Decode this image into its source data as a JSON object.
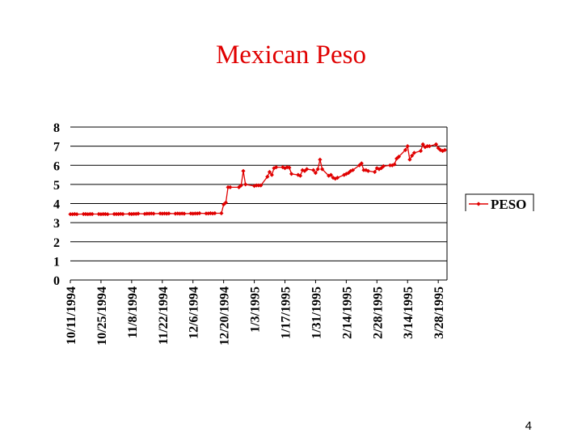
{
  "slide": {
    "title": "Mexican Peso",
    "page_number": "4"
  },
  "chart_data": {
    "type": "line",
    "title": "Mexican Peso",
    "xlabel": "",
    "ylabel": "",
    "ylim": [
      0,
      8
    ],
    "yticks": [
      "0",
      "1",
      "2",
      "3",
      "4",
      "5",
      "6",
      "7",
      "8"
    ],
    "grid": "horizontal",
    "legend": "right",
    "series_color": "#e00000",
    "x_tick_labels": [
      "10/11/1994",
      "10/25/1994",
      "11/8/1994",
      "11/22/1994",
      "12/6/1994",
      "12/20/1994",
      "1/3/1995",
      "1/17/1995",
      "1/31/1995",
      "2/14/1995",
      "2/28/1995",
      "3/14/1995",
      "3/28/1995"
    ],
    "x_start": "10/11/1994",
    "x_end": "4/1/1995",
    "series": [
      {
        "name": "PESO",
        "x": [
          "10/11/1994",
          "10/12/1994",
          "10/13/1994",
          "10/14/1994",
          "10/17/1994",
          "10/18/1994",
          "10/19/1994",
          "10/20/1994",
          "10/21/1994",
          "10/24/1994",
          "10/25/1994",
          "10/26/1994",
          "10/27/1994",
          "10/28/1994",
          "10/31/1994",
          "11/1/1994",
          "11/2/1994",
          "11/3/1994",
          "11/4/1994",
          "11/7/1994",
          "11/8/1994",
          "11/9/1994",
          "11/10/1994",
          "11/11/1994",
          "11/14/1994",
          "11/15/1994",
          "11/16/1994",
          "11/17/1994",
          "11/18/1994",
          "11/21/1994",
          "11/22/1994",
          "11/23/1994",
          "11/24/1994",
          "11/25/1994",
          "11/28/1994",
          "11/29/1994",
          "11/30/1994",
          "12/1/1994",
          "12/2/1994",
          "12/5/1994",
          "12/6/1994",
          "12/7/1994",
          "12/8/1994",
          "12/9/1994",
          "12/12/1994",
          "12/13/1994",
          "12/14/1994",
          "12/15/1994",
          "12/16/1994",
          "12/19/1994",
          "12/20/1994",
          "12/21/1994",
          "12/22/1994",
          "12/23/1994",
          "12/27/1994",
          "12/28/1994",
          "12/29/1994",
          "12/30/1994",
          "1/3/1995",
          "1/4/1995",
          "1/5/1995",
          "1/6/1995",
          "1/9/1995",
          "1/10/1995",
          "1/11/1995",
          "1/12/1995",
          "1/13/1995",
          "1/16/1995",
          "1/17/1995",
          "1/18/1995",
          "1/19/1995",
          "1/20/1995",
          "1/23/1995",
          "1/24/1995",
          "1/25/1995",
          "1/26/1995",
          "1/27/1995",
          "1/30/1995",
          "1/31/1995",
          "2/1/1995",
          "2/2/1995",
          "2/3/1995",
          "2/6/1995",
          "2/7/1995",
          "2/8/1995",
          "2/9/1995",
          "2/10/1995",
          "2/13/1995",
          "2/14/1995",
          "2/15/1995",
          "2/16/1995",
          "2/17/1995",
          "2/20/1995",
          "2/21/1995",
          "2/22/1995",
          "2/23/1995",
          "2/24/1995",
          "2/27/1995",
          "2/28/1995",
          "3/1/1995",
          "3/2/1995",
          "3/3/1995",
          "3/6/1995",
          "3/7/1995",
          "3/8/1995",
          "3/9/1995",
          "3/10/1995",
          "3/13/1995",
          "3/14/1995",
          "3/15/1995",
          "3/16/1995",
          "3/17/1995",
          "3/20/1995",
          "3/21/1995",
          "3/22/1995",
          "3/23/1995",
          "3/24/1995",
          "3/27/1995",
          "3/28/1995",
          "3/29/1995",
          "3/30/1995",
          "3/31/1995"
        ],
        "values": [
          3.44,
          3.44,
          3.45,
          3.44,
          3.45,
          3.45,
          3.44,
          3.45,
          3.45,
          3.45,
          3.44,
          3.45,
          3.45,
          3.44,
          3.45,
          3.45,
          3.45,
          3.46,
          3.45,
          3.46,
          3.45,
          3.46,
          3.46,
          3.47,
          3.46,
          3.47,
          3.47,
          3.48,
          3.47,
          3.48,
          3.47,
          3.48,
          3.47,
          3.48,
          3.47,
          3.48,
          3.47,
          3.48,
          3.47,
          3.48,
          3.47,
          3.48,
          3.48,
          3.49,
          3.48,
          3.48,
          3.49,
          3.48,
          3.49,
          3.49,
          3.95,
          4.05,
          4.85,
          4.85,
          4.85,
          4.95,
          5.7,
          5.0,
          4.92,
          4.95,
          4.95,
          4.95,
          5.4,
          5.65,
          5.5,
          5.85,
          5.9,
          5.9,
          5.85,
          5.9,
          5.88,
          5.55,
          5.5,
          5.45,
          5.75,
          5.7,
          5.8,
          5.75,
          5.6,
          5.8,
          6.3,
          5.8,
          5.45,
          5.5,
          5.35,
          5.3,
          5.35,
          5.5,
          5.55,
          5.6,
          5.7,
          5.75,
          6.0,
          6.1,
          5.75,
          5.75,
          5.7,
          5.65,
          5.85,
          5.8,
          5.85,
          5.95,
          6.0,
          6.0,
          6.05,
          6.35,
          6.45,
          6.8,
          7.0,
          6.3,
          6.5,
          6.65,
          6.75,
          7.1,
          6.95,
          7.0,
          7.0,
          7.1,
          6.9,
          6.8,
          6.75,
          6.8
        ]
      }
    ]
  }
}
